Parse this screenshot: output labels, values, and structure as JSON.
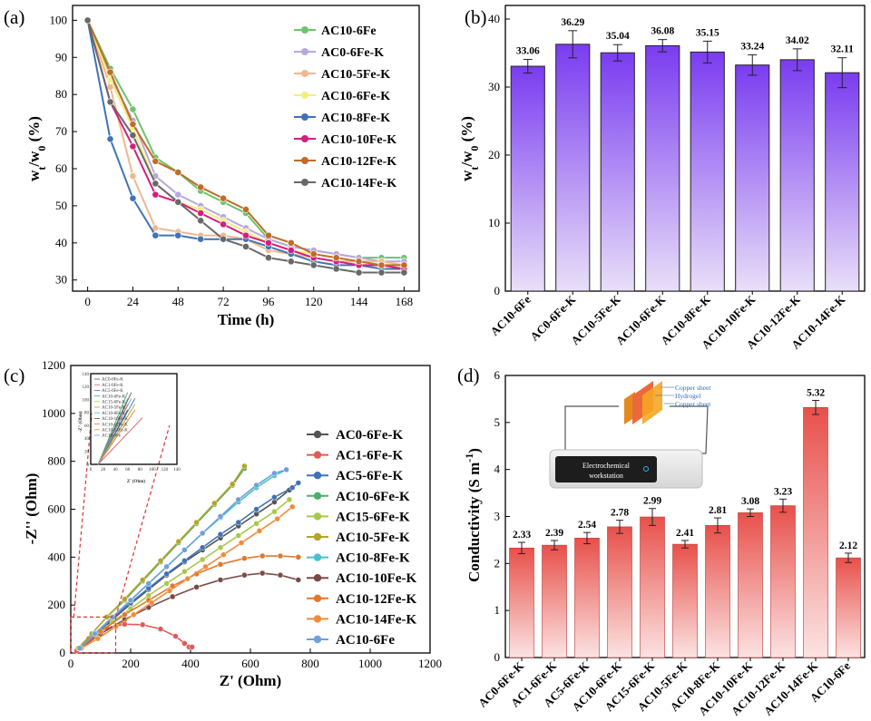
{
  "chart_data": [
    {
      "panel": "(a)",
      "type": "line",
      "xlabel": "Time (h)",
      "ylabel": "wt/w0 (%)",
      "ylabel_main": "w",
      "ylabel_sub1": "t",
      "ylabel_sep": "/w",
      "ylabel_sub2": "0",
      "ylabel_tail": " (%)",
      "xlim": [
        -8,
        176
      ],
      "ylim": [
        27,
        104
      ],
      "xticks": [
        0,
        24,
        48,
        72,
        96,
        120,
        144,
        168
      ],
      "yticks": [
        30,
        40,
        50,
        60,
        70,
        80,
        90,
        100
      ],
      "x": [
        0,
        12,
        24,
        36,
        48,
        60,
        72,
        84,
        96,
        108,
        120,
        132,
        144,
        156,
        168
      ],
      "legend_position": "top-right",
      "series": [
        {
          "name": "AC10-6Fe",
          "color": "#6cc46c",
          "values": [
            100,
            87,
            76,
            63,
            59,
            54,
            51,
            48,
            41,
            39,
            38,
            37,
            36,
            36,
            36
          ]
        },
        {
          "name": "AC0-6Fe-K",
          "color": "#b9a8dc",
          "values": [
            100,
            85,
            73,
            58,
            53,
            50,
            47,
            44,
            41,
            39,
            38,
            37,
            36,
            35,
            35
          ]
        },
        {
          "name": "AC10-5Fe-K",
          "color": "#f0b890",
          "values": [
            100,
            82,
            58,
            44,
            43,
            42,
            42,
            41,
            38,
            37,
            36,
            35,
            35,
            35,
            34
          ]
        },
        {
          "name": "AC10-6Fe-K",
          "color": "#f2ee80",
          "values": [
            100,
            84,
            71,
            56,
            51,
            49,
            46,
            43,
            40,
            38,
            37,
            36,
            35,
            34,
            34
          ]
        },
        {
          "name": "AC10-8Fe-K",
          "color": "#3f73b5",
          "values": [
            100,
            68,
            52,
            42,
            42,
            41,
            41,
            41,
            39,
            37,
            35,
            34,
            34,
            33,
            33
          ]
        },
        {
          "name": "AC10-10Fe-K",
          "color": "#d21f7d",
          "values": [
            100,
            78,
            66,
            53,
            51,
            48,
            45,
            42,
            40,
            38,
            36,
            35,
            34,
            34,
            33
          ]
        },
        {
          "name": "AC10-12Fe-K",
          "color": "#c06c28",
          "values": [
            100,
            86,
            72,
            62,
            59,
            55,
            52,
            49,
            42,
            40,
            37,
            36,
            35,
            34,
            34
          ]
        },
        {
          "name": "AC10-14Fe-K",
          "color": "#686868",
          "values": [
            100,
            78,
            69,
            56,
            51,
            46,
            41,
            39,
            36,
            35,
            34,
            33,
            32,
            32,
            32
          ]
        }
      ]
    },
    {
      "panel": "(b)",
      "type": "bar",
      "ylabel": "wt/w0 (%)",
      "ylabel_main": "w",
      "ylabel_sub1": "t",
      "ylabel_sep": "/w",
      "ylabel_sub2": "0",
      "ylabel_tail": " (%)",
      "ylim": [
        0,
        42
      ],
      "yticks": [
        0,
        10,
        20,
        30,
        40
      ],
      "categories": [
        "AC10-6Fe",
        "AC0-6Fe-K",
        "AC10-5Fe-K",
        "AC10-6Fe-K",
        "AC10-8Fe-K",
        "AC10-10Fe-K",
        "AC10-12Fe-K",
        "AC10-14Fe-K"
      ],
      "values": [
        33.06,
        36.29,
        35.04,
        36.08,
        35.15,
        33.24,
        34.02,
        32.11
      ],
      "labels": [
        "33.06",
        "36.29",
        "35.04",
        "36.08",
        "35.15",
        "33.24",
        "34.02",
        "32.11"
      ],
      "errors": [
        1.0,
        2.0,
        1.2,
        0.9,
        1.6,
        1.5,
        1.6,
        2.2
      ],
      "bar_color_top": "#7a3cf0",
      "bar_color_bottom": "#e9dff8"
    },
    {
      "panel": "(c)",
      "type": "scatter",
      "xlabel": "Z' (Ohm)",
      "ylabel": "-Z'' (Ohm)",
      "xlim": [
        0,
        1200
      ],
      "ylim": [
        0,
        1200
      ],
      "xticks": [
        0,
        200,
        400,
        600,
        800,
        1000,
        1200
      ],
      "yticks": [
        0,
        200,
        400,
        600,
        800,
        1000,
        1200
      ],
      "legend_position": "right",
      "series": [
        {
          "name": "AC0-6Fe-K",
          "color": "#555555",
          "x": [
            30,
            80,
            140,
            200,
            260,
            320,
            380,
            440,
            500,
            560,
            620,
            680,
            730
          ],
          "y": [
            20,
            70,
            140,
            205,
            265,
            325,
            380,
            430,
            480,
            530,
            580,
            630,
            680
          ]
        },
        {
          "name": "AC1-6Fe-K",
          "color": "#e05a5a",
          "x": [
            20,
            60,
            120,
            180,
            240,
            300,
            350,
            380,
            395,
            405
          ],
          "y": [
            10,
            60,
            105,
            120,
            118,
            100,
            70,
            40,
            25,
            25
          ]
        },
        {
          "name": "AC5-6Fe-K",
          "color": "#3f73b5",
          "x": [
            30,
            80,
            140,
            200,
            260,
            320,
            380,
            440,
            500,
            560,
            620,
            680,
            740,
            760
          ],
          "y": [
            20,
            75,
            145,
            210,
            270,
            330,
            385,
            440,
            495,
            545,
            600,
            650,
            690,
            710
          ]
        },
        {
          "name": "AC10-6Fe-K",
          "color": "#4caf6a",
          "x": [
            25,
            70,
            120,
            180,
            240,
            300,
            360,
            420,
            480,
            540,
            580
          ],
          "y": [
            20,
            80,
            150,
            220,
            300,
            380,
            460,
            540,
            620,
            700,
            770
          ]
        },
        {
          "name": "AC15-6Fe-K",
          "color": "#a8c84a",
          "x": [
            30,
            80,
            140,
            200,
            260,
            320,
            380,
            440,
            500,
            560,
            620,
            680,
            730
          ],
          "y": [
            20,
            70,
            130,
            185,
            240,
            290,
            340,
            390,
            440,
            490,
            540,
            590,
            640
          ]
        },
        {
          "name": "AC10-5Fe-K",
          "color": "#b5a42a",
          "x": [
            25,
            70,
            120,
            180,
            240,
            300,
            360,
            420,
            480,
            540,
            580
          ],
          "y": [
            20,
            80,
            150,
            225,
            305,
            385,
            465,
            545,
            625,
            705,
            780
          ]
        },
        {
          "name": "AC10-8Fe-K",
          "color": "#48c0cf",
          "x": [
            30,
            80,
            140,
            200,
            260,
            320,
            380,
            440,
            500,
            560,
            620,
            680,
            720
          ],
          "y": [
            20,
            80,
            150,
            220,
            290,
            360,
            430,
            500,
            565,
            630,
            690,
            740,
            765
          ]
        },
        {
          "name": "AC10-10Fe-K",
          "color": "#7a4a48",
          "x": [
            30,
            100,
            180,
            260,
            340,
            420,
            500,
            580,
            640,
            700,
            760
          ],
          "y": [
            20,
            80,
            140,
            190,
            235,
            275,
            305,
            325,
            333,
            325,
            305
          ]
        },
        {
          "name": "AC10-12Fe-K",
          "color": "#e0782c",
          "x": [
            30,
            100,
            180,
            260,
            340,
            420,
            500,
            580,
            640,
            700,
            760
          ],
          "y": [
            20,
            90,
            160,
            220,
            280,
            330,
            370,
            395,
            405,
            405,
            400
          ]
        },
        {
          "name": "AC10-14Fe-K",
          "color": "#ef8c3c",
          "x": [
            35,
            90,
            150,
            210,
            270,
            330,
            390,
            450,
            510,
            570,
            630,
            690,
            740
          ],
          "y": [
            20,
            60,
            110,
            160,
            210,
            260,
            310,
            360,
            410,
            460,
            510,
            560,
            610
          ]
        },
        {
          "name": "AC10-6Fe",
          "color": "#6fa0d8",
          "x": [
            30,
            80,
            140,
            200,
            260,
            320,
            380,
            440,
            500,
            560,
            620,
            680,
            720
          ],
          "y": [
            20,
            80,
            150,
            220,
            290,
            360,
            430,
            500,
            570,
            640,
            700,
            750,
            765
          ]
        }
      ],
      "inset": {
        "xlabel": "Z' (Ohm)",
        "ylabel": "-Z'' (Ohm)",
        "xticks": [
          0,
          20,
          40,
          60,
          80,
          100,
          120,
          140
        ],
        "yticks": [
          0,
          20,
          40,
          60,
          80,
          100,
          120,
          140
        ],
        "legend": [
          "AC0-6Fe-K",
          "AC1-6Fe-K",
          "AC5-6Fe-K",
          "AC10-6Fe-K",
          "AC15-6Fe-K",
          "AC10-5Fe-K",
          "AC10-8Fe-K",
          "AC10-10Fe-K",
          "AC10-12Fe-K",
          "AC10-14Fe-K",
          "AC10-6Fe"
        ]
      }
    },
    {
      "panel": "(d)",
      "type": "bar",
      "ylabel": "Conductivity (S m",
      "ylabel_sup": "-1",
      "ylabel_tail": ")",
      "ylim": [
        0,
        6
      ],
      "yticks": [
        0,
        1,
        2,
        3,
        4,
        5,
        6
      ],
      "categories": [
        "AC0-6Fe-K",
        "AC1-6Fe-K",
        "AC5-6Fe-K",
        "AC10-6Fe-K",
        "AC15-6Fe-K",
        "AC10-5Fe-K",
        "AC10-8Fe-K",
        "AC10-10Fe-K",
        "AC10-12Fe-K",
        "AC10-14Fe-K",
        "AC10-6Fe"
      ],
      "values": [
        2.33,
        2.39,
        2.54,
        2.78,
        2.99,
        2.41,
        2.81,
        3.08,
        3.23,
        5.32,
        2.12
      ],
      "labels": [
        "2.33",
        "2.39",
        "2.54",
        "2.78",
        "2.99",
        "2.41",
        "2.81",
        "3.08",
        "3.23",
        "5.32",
        "2.12"
      ],
      "errors": [
        0.12,
        0.1,
        0.12,
        0.14,
        0.18,
        0.08,
        0.16,
        0.08,
        0.14,
        0.15,
        0.1
      ],
      "bar_color_top": "#e8504a",
      "bar_color_bottom": "#fbe3e2",
      "device_label_1": "Electrochemical",
      "device_label_2": "workstation",
      "sheet_labels": [
        "Copper sheet",
        "Hydrogel",
        "Copper sheet"
      ]
    }
  ]
}
